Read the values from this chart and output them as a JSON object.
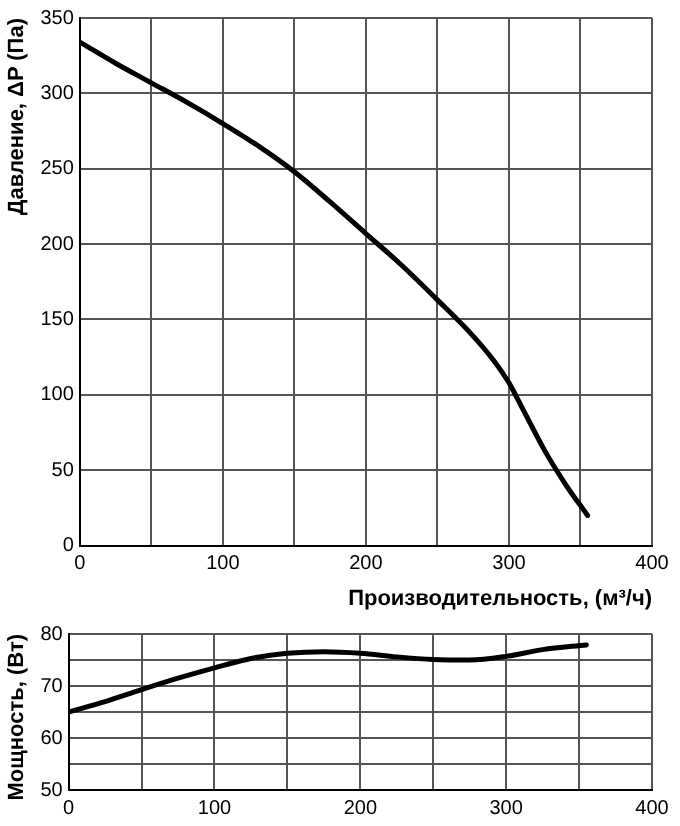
{
  "chart_data": [
    {
      "type": "line",
      "ylabel": "Давление, ΔP (Па)",
      "xlabel": "Производительность, (м³/ч)",
      "x": [
        0,
        25,
        50,
        75,
        100,
        125,
        150,
        175,
        200,
        225,
        250,
        275,
        290,
        300,
        310,
        325,
        340,
        355
      ],
      "series": [
        {
          "color": "#000000",
          "values": [
            334,
            320,
            307,
            294,
            280,
            265,
            248,
            228,
            207,
            186,
            163,
            139,
            122,
            108,
            90,
            63,
            40,
            20
          ]
        }
      ],
      "xlim": [
        0,
        400
      ],
      "xticks": [
        0,
        100,
        200,
        300,
        400,
        {
          "value": 50,
          "label": null
        },
        {
          "value": 150,
          "label": null
        },
        {
          "value": 250,
          "label": null
        },
        {
          "value": 350,
          "label": null
        }
      ],
      "ylim": [
        0,
        350
      ],
      "yticks": [
        0,
        50,
        100,
        150,
        200,
        250,
        300,
        350
      ],
      "grid": true,
      "legend": false,
      "marker": "none",
      "line_style": "solid"
    },
    {
      "type": "line",
      "ylabel": "Мощность, (Вт)",
      "x": [
        0,
        25,
        50,
        75,
        100,
        125,
        150,
        175,
        200,
        225,
        250,
        275,
        300,
        325,
        355
      ],
      "series": [
        {
          "color": "#000000",
          "values": [
            65,
            67,
            69.3,
            71.5,
            73.5,
            75.3,
            76.3,
            76.6,
            76.3,
            75.6,
            75.1,
            75,
            75.7,
            77,
            77.9
          ]
        }
      ],
      "xlim": [
        0,
        400
      ],
      "xticks": [
        0,
        100,
        200,
        300,
        400,
        {
          "value": 50,
          "label": null
        },
        {
          "value": 150,
          "label": null
        },
        {
          "value": 250,
          "label": null
        },
        {
          "value": 350,
          "label": null
        }
      ],
      "ylim": [
        50,
        80
      ],
      "yticks": [
        50,
        60,
        70,
        80,
        {
          "value": 55,
          "label": null
        },
        {
          "value": 65,
          "label": null
        },
        {
          "value": 75,
          "label": null
        }
      ],
      "grid": true,
      "legend": false,
      "marker": "none",
      "line_style": "solid"
    }
  ]
}
